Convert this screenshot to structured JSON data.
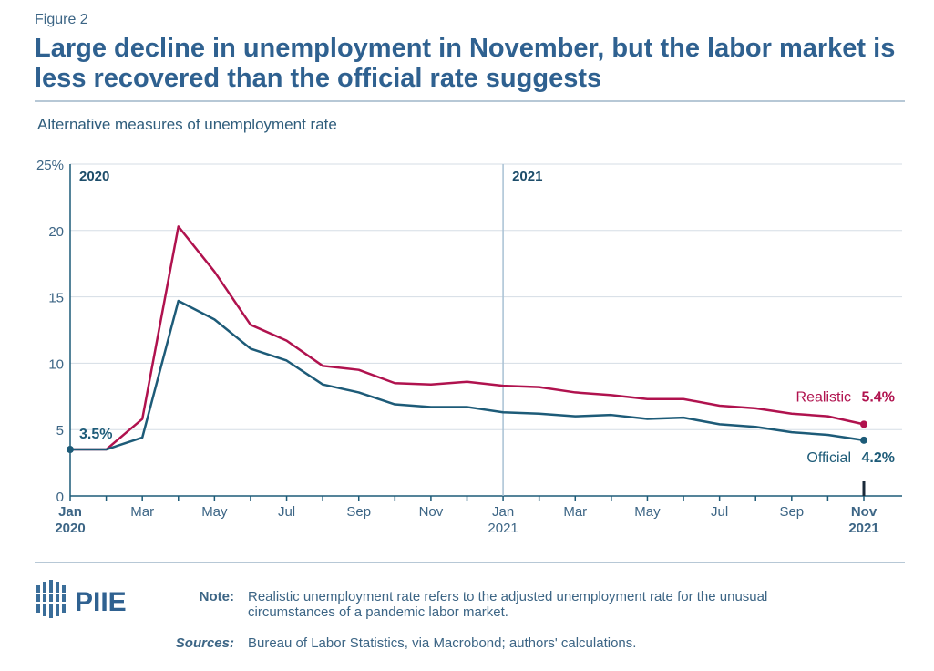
{
  "figure_label": "Figure 2",
  "chart_data": {
    "type": "line",
    "title": "Large decline in unemployment in November, but the labor market is less recovered than the official rate suggests",
    "subtitle": "Alternative measures of unemployment rate",
    "categories": [
      "Jan 2020",
      null,
      "Mar",
      null,
      "May",
      null,
      "Jul",
      null,
      "Sep",
      null,
      "Nov",
      null,
      "Jan 2021",
      null,
      "Mar",
      null,
      "May",
      null,
      "Jul",
      null,
      "Sep",
      null,
      "Nov 2021"
    ],
    "period_labels": [
      "2020",
      "2021"
    ],
    "series": [
      {
        "name": "Realistic",
        "color": "#b0124e",
        "values": [
          3.5,
          3.5,
          5.8,
          20.3,
          16.9,
          12.9,
          11.7,
          9.8,
          9.5,
          8.5,
          8.4,
          8.6,
          8.3,
          8.2,
          7.8,
          7.6,
          7.3,
          7.3,
          6.8,
          6.6,
          6.2,
          6.0,
          5.4
        ],
        "value_labels": [
          null,
          null,
          null,
          null,
          null,
          null,
          null,
          null,
          null,
          null,
          null,
          null,
          null,
          null,
          null,
          null,
          null,
          null,
          null,
          null,
          null,
          null,
          "5.4%"
        ]
      },
      {
        "name": "Official",
        "color": "#1d5b78",
        "values": [
          3.5,
          3.5,
          4.4,
          14.7,
          13.3,
          11.1,
          10.2,
          8.4,
          7.8,
          6.9,
          6.7,
          6.7,
          6.3,
          6.2,
          6.0,
          6.1,
          5.8,
          5.9,
          5.4,
          5.2,
          4.8,
          4.6,
          4.2
        ],
        "value_labels": [
          "3.5%",
          null,
          null,
          null,
          null,
          null,
          null,
          null,
          null,
          null,
          null,
          null,
          null,
          null,
          null,
          null,
          null,
          null,
          null,
          null,
          null,
          null,
          "4.2%"
        ]
      }
    ],
    "ylim": [
      0,
      25
    ],
    "yticks": [
      0,
      5,
      10,
      15,
      20,
      {
        "value": 25,
        "label": "25%"
      }
    ],
    "grid": true
  },
  "logo": "PIIE",
  "footer": {
    "note_label": "Note:",
    "note": "Realistic unemployment rate refers to the adjusted unemployment rate for the unusual circumstances of a pandemic labor market.",
    "sources_label": "Sources:",
    "sources": "Bureau of Labor Statistics, via Macrobond; authors' calculations."
  }
}
